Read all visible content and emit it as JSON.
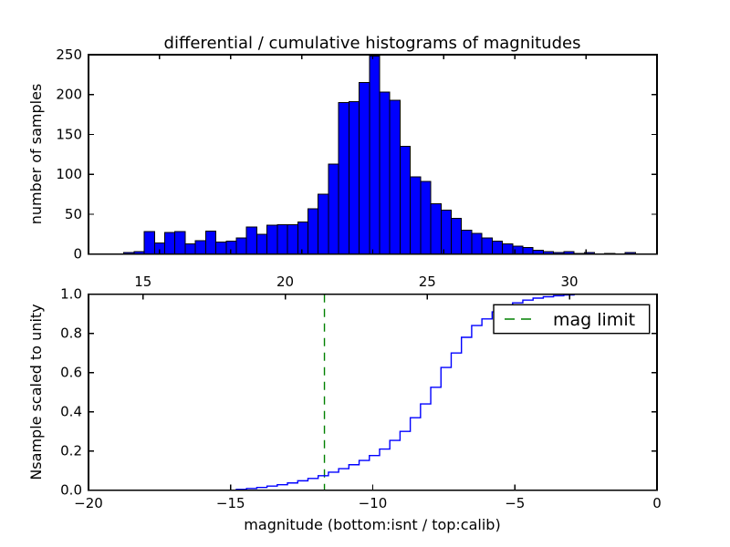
{
  "figure": {
    "title": "differential / cumulative histograms of magnitudes",
    "colors": {
      "bar_fill": "#0000ff",
      "bar_edge": "#000000",
      "curve": "#0000ff",
      "mag_limit": "#008000",
      "axis": "#000000",
      "background": "#ffffff"
    }
  },
  "top_plot": {
    "ylabel": "number of samples",
    "ytick_labels": [
      "0",
      "50",
      "100",
      "150",
      "200",
      "250"
    ],
    "yticks": [
      0,
      50,
      100,
      150,
      200,
      250
    ],
    "xticks_unlabeled_isnt": [
      -20,
      -17.5,
      -15,
      -12.5,
      -10,
      -7.5,
      -5,
      -2.5,
      0
    ]
  },
  "gap_axis": {
    "tick_labels": [
      "15",
      "20",
      "25",
      "30"
    ],
    "tick_values": [
      15,
      20,
      25,
      30
    ]
  },
  "bottom_plot": {
    "ylabel": "Nsample scaled to unity",
    "xlabel": "magnitude (bottom:isnt / top:calib)",
    "xtick_labels": [
      "−20",
      "−15",
      "−10",
      "−5",
      "0"
    ],
    "xticks": [
      -20,
      -15,
      -10,
      -5,
      0
    ],
    "ytick_labels": [
      "0.0",
      "0.2",
      "0.4",
      "0.6",
      "0.8",
      "1.0"
    ],
    "yticks": [
      0,
      0.2,
      0.4,
      0.6,
      0.8,
      1.0
    ],
    "legend_label": "mag limit"
  },
  "chart_data": [
    {
      "type": "bar",
      "subplot": "top",
      "title": "differential / cumulative histograms of magnitudes",
      "ylabel": "number of samples",
      "x_axis_name": "calib magnitude (tick labels 15/20/25/30 drawn between subplots)",
      "bin_start": 14.32,
      "bin_width": 0.36,
      "counts": [
        2,
        3,
        28,
        14,
        27,
        28,
        13,
        17,
        29,
        15,
        16,
        20,
        34,
        25,
        36,
        37,
        37,
        40,
        57,
        75,
        113,
        190,
        191,
        215,
        248,
        203,
        193,
        135,
        97,
        91,
        63,
        55,
        45,
        30,
        26,
        20,
        16,
        13,
        10,
        8,
        5,
        3,
        2,
        3,
        1,
        2,
        0,
        1,
        0,
        2
      ],
      "xlim": [
        13.08,
        33.08
      ],
      "ylim": [
        0,
        250
      ],
      "xticks": [
        15,
        20,
        25,
        30
      ],
      "grid": false,
      "bar_color": "#0000ff"
    },
    {
      "type": "line",
      "subplot": "bottom",
      "style": "cumulative-step",
      "ylabel": "Nsample scaled to unity",
      "xlabel": "magnitude (bottom:isnt / top:calib)",
      "xlim": [
        -20,
        0
      ],
      "ylim": [
        0,
        1
      ],
      "xticks": [
        -20,
        -15,
        -10,
        -5,
        0
      ],
      "yticks": [
        0,
        0.2,
        0.4,
        0.6,
        0.8,
        1.0
      ],
      "grid": false,
      "line_color": "#0000ff",
      "steps": [
        [
          -14.8,
          0.004
        ],
        [
          -14.44,
          0.009
        ],
        [
          -14.08,
          0.014
        ],
        [
          -13.72,
          0.021
        ],
        [
          -13.36,
          0.028
        ],
        [
          -13.0,
          0.037
        ],
        [
          -12.64,
          0.048
        ],
        [
          -12.28,
          0.06
        ],
        [
          -11.92,
          0.074
        ],
        [
          -11.56,
          0.092
        ],
        [
          -11.2,
          0.11
        ],
        [
          -10.84,
          0.13
        ],
        [
          -10.48,
          0.152
        ],
        [
          -10.12,
          0.177
        ],
        [
          -9.76,
          0.21
        ],
        [
          -9.4,
          0.254
        ],
        [
          -9.04,
          0.3
        ],
        [
          -8.68,
          0.37
        ],
        [
          -8.32,
          0.44
        ],
        [
          -7.96,
          0.525
        ],
        [
          -7.6,
          0.626
        ],
        [
          -7.24,
          0.7
        ],
        [
          -6.88,
          0.78
        ],
        [
          -6.52,
          0.84
        ],
        [
          -6.16,
          0.874
        ],
        [
          -5.8,
          0.91
        ],
        [
          -5.44,
          0.936
        ],
        [
          -5.08,
          0.956
        ],
        [
          -4.72,
          0.97
        ],
        [
          -4.36,
          0.98
        ],
        [
          -4.0,
          0.987
        ],
        [
          -3.64,
          0.992
        ],
        [
          -3.28,
          0.996
        ],
        [
          -2.92,
          1.0
        ]
      ],
      "vline": {
        "x": -11.7,
        "label": "mag limit",
        "linestyle": "dashed",
        "color": "#008000"
      },
      "legend": {
        "position": "upper right",
        "entries": [
          "mag limit"
        ]
      }
    }
  ]
}
